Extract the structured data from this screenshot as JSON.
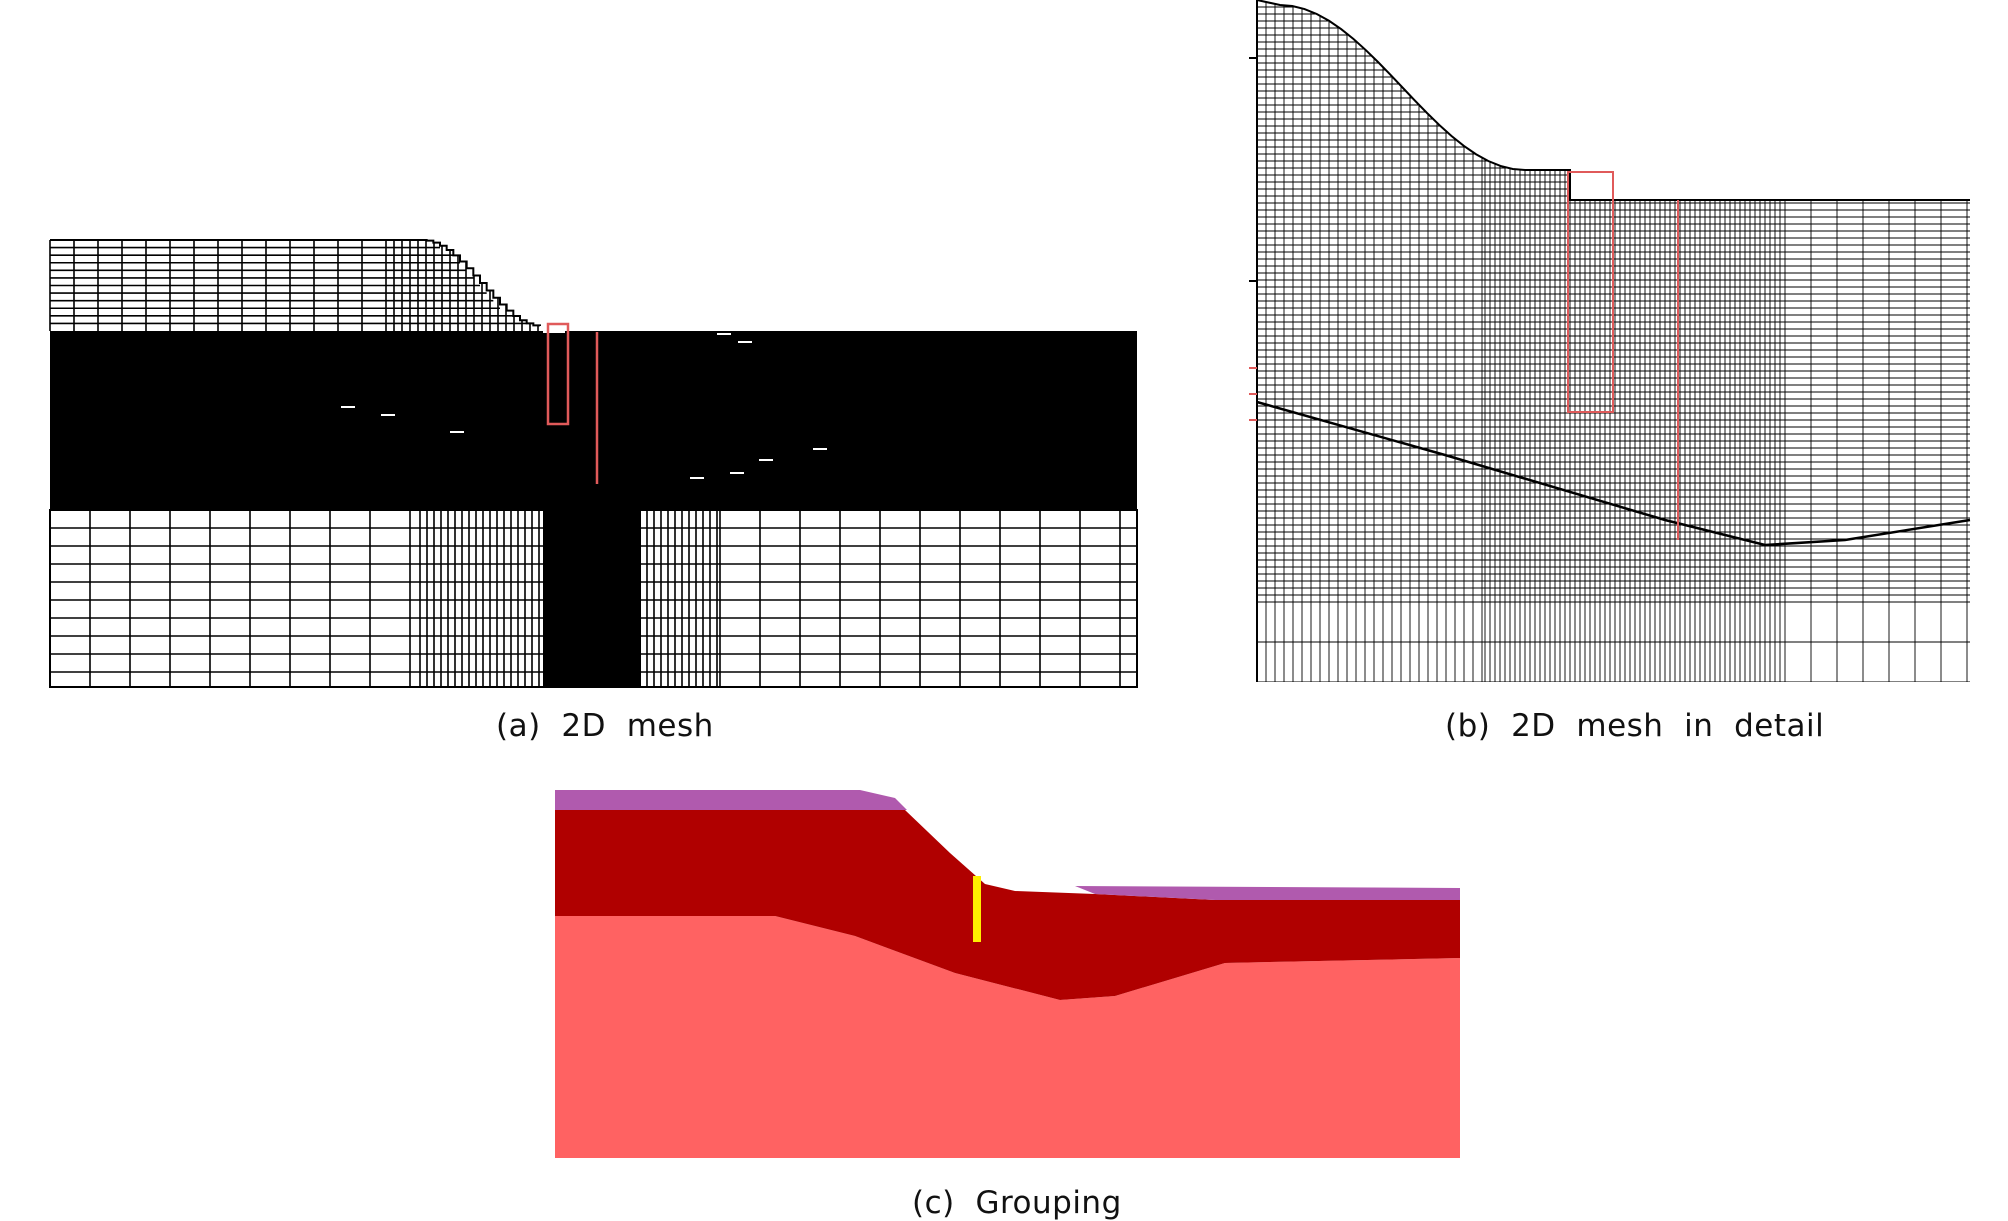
{
  "figure": {
    "panels": [
      {
        "id": "a",
        "caption": "(a)  2D  mesh"
      },
      {
        "id": "b",
        "caption": "(b)  2D  mesh  in  detail"
      },
      {
        "id": "c",
        "caption": "(c)  Grouping"
      }
    ]
  },
  "colors": {
    "mesh_line": "#000000",
    "pile_outline": "#e05a5a",
    "group_surface": "#b05aae",
    "group_middle": "#b00000",
    "group_base": "#ff6262",
    "group_pile": "#ffee00"
  }
}
